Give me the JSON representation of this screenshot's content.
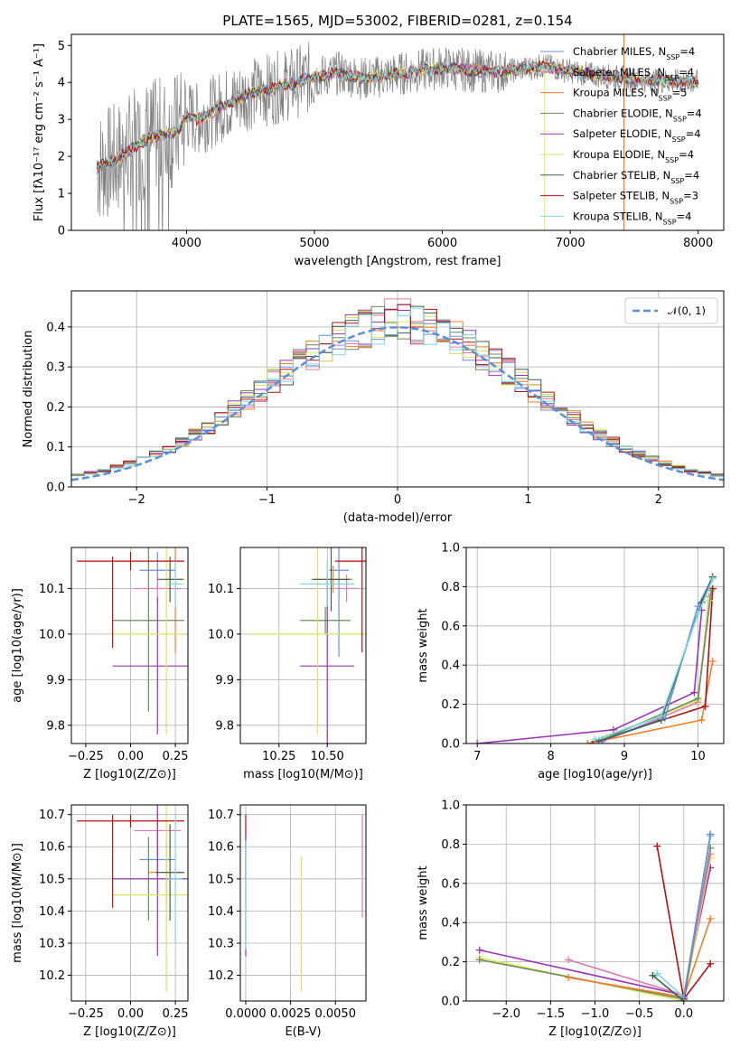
{
  "title": "PLATE=1565, MJD=53002, FIBERID=0281, z=0.154",
  "colors": {
    "miles_chabrier": "#6b8fd8",
    "miles_salpeter": "#e07ab0",
    "miles_kroupa": "#f07f2a",
    "elodie_chabrier": "#6b8c58",
    "elodie_salpeter": "#9a35b5",
    "elodie_kroupa": "#d9e65a",
    "stelib_chabrier": "#3e5f50",
    "stelib_salpeter": "#b21010",
    "stelib_kroupa": "#7ed8e0",
    "data": "#7f7f7f",
    "gauss": "#5b8fd8"
  },
  "legend_spectrum": [
    {
      "name": "Chabrier MILES, N",
      "sub": "SSP",
      "tail": "=4"
    },
    {
      "name": "Salpeter MILES, N",
      "sub": "SSP",
      "tail": "=4"
    },
    {
      "name": "Kroupa MILES, N",
      "sub": "SSP",
      "tail": "=5"
    },
    {
      "name": "Chabrier ELODIE, N",
      "sub": "SSP",
      "tail": "=4"
    },
    {
      "name": "Salpeter ELODIE, N",
      "sub": "SSP",
      "tail": "=4"
    },
    {
      "name": "Kroupa ELODIE, N",
      "sub": "SSP",
      "tail": "=4"
    },
    {
      "name": "Chabrier STELIB, N",
      "sub": "SSP",
      "tail": "=4"
    },
    {
      "name": "Salpeter STELIB, N",
      "sub": "SSP",
      "tail": "=3"
    },
    {
      "name": "Kroupa STELIB, N",
      "sub": "SSP",
      "tail": "=4"
    }
  ],
  "legend_hist": "𝒩(0, 1)",
  "chart_data": [
    {
      "id": "spectrum",
      "type": "line",
      "xlabel": "wavelength [Angstrom, rest frame]",
      "ylabel": "Flux [fλ10⁻¹⁷ erg cm⁻² s⁻¹ A⁻¹]",
      "xlim": [
        3100,
        8200
      ],
      "ylim": [
        0,
        5.3
      ],
      "xticks": [
        4000,
        5000,
        6000,
        7000,
        8000
      ],
      "yticks": [
        0,
        1,
        2,
        3,
        4,
        5
      ],
      "model_x": [
        3300,
        3450,
        3550,
        3700,
        3850,
        3950,
        4000,
        4100,
        4300,
        4500,
        4700,
        5000,
        5200,
        5400,
        5600,
        5800,
        6000,
        6300,
        6500,
        6800,
        7000,
        7300,
        7600,
        8000
      ],
      "model_y": [
        1.7,
        1.9,
        2.15,
        2.5,
        2.6,
        2.75,
        3.1,
        3.0,
        3.4,
        3.7,
        3.85,
        4.15,
        4.25,
        4.1,
        4.2,
        4.3,
        4.4,
        4.3,
        4.3,
        4.45,
        4.3,
        4.15,
        4.05,
        4.0
      ],
      "data_noise_amp": 1.0
    },
    {
      "id": "residuals",
      "type": "histogram",
      "xlabel": "(data-model)/error",
      "ylabel": "Normed distribution",
      "xlim": [
        -2.5,
        2.5
      ],
      "ylim": [
        0,
        0.49
      ],
      "xticks": [
        -2,
        -1,
        0,
        1,
        2
      ],
      "yticks": [
        0.0,
        0.1,
        0.2,
        0.3,
        0.4
      ],
      "bin_width": 0.1,
      "series_count": 9
    },
    {
      "id": "age_vs_Z",
      "type": "errorbar",
      "xlabel": "Z [log10(Z/Z⊙)]",
      "ylabel": "age  [log10(age/yr)]",
      "xlim": [
        -0.33,
        0.32
      ],
      "ylim": [
        9.76,
        10.19
      ],
      "xticks": [
        -0.25,
        0.0,
        0.25
      ],
      "yticks": [
        9.8,
        9.9,
        10.0,
        10.1
      ],
      "points": [
        {
          "c": "miles_chabrier",
          "x": 0.15,
          "xe": 0.1,
          "y": 10.14,
          "ye": 0.04
        },
        {
          "c": "miles_salpeter",
          "x": 0.15,
          "xe": 0.13,
          "y": 10.1,
          "ye": 0.03
        },
        {
          "c": "miles_kroupa",
          "x": 0.25,
          "xe": 0.05,
          "y": 10.12,
          "ye": 0.16
        },
        {
          "c": "elodie_chabrier",
          "x": 0.1,
          "xe": 0.2,
          "y": 10.03,
          "ye": 0.2
        },
        {
          "c": "elodie_salpeter",
          "x": 0.15,
          "xe": 0.25,
          "y": 9.93,
          "ye": 0.15
        },
        {
          "c": "elodie_kroupa",
          "x": 0.2,
          "xe": 0.3,
          "y": 10.0,
          "ye": 0.22
        },
        {
          "c": "stelib_chabrier",
          "x": 0.22,
          "xe": 0.07,
          "y": 10.12,
          "ye": 0.05
        },
        {
          "c": "stelib_salpeter",
          "x": 0.0,
          "xe": 0.3,
          "y": 10.16,
          "ye": 0.02
        },
        {
          "c": "stelib_kroupa",
          "x": 0.25,
          "xe": 0.04,
          "y": 10.11,
          "ye": 0.05
        }
      ],
      "extra_vlines": [
        {
          "c": "stelib_salpeter",
          "x": -0.1,
          "y0": 9.97,
          "y1": 10.17
        }
      ]
    },
    {
      "id": "age_vs_mass",
      "type": "errorbar",
      "xlabel": "mass [log10(M/M⊙)]",
      "ylabel": "",
      "xlim": [
        10.05,
        10.7
      ],
      "ylim": [
        9.76,
        10.19
      ],
      "xticks": [
        10.25,
        10.5
      ],
      "yticks": [
        9.8,
        9.9,
        10.0,
        10.1
      ],
      "points": [
        {
          "c": "miles_chabrier",
          "x": 10.56,
          "xe": 0.05,
          "y": 10.14,
          "ye": 0.19
        },
        {
          "c": "miles_salpeter",
          "x": 10.6,
          "xe": 0.06,
          "y": 10.1,
          "ye": 0.03
        },
        {
          "c": "miles_kroupa",
          "x": 10.53,
          "xe": 0.1,
          "y": 10.12,
          "ye": 0.03
        },
        {
          "c": "elodie_chabrier",
          "x": 10.49,
          "xe": 0.13,
          "y": 10.03,
          "ye": 0.03
        },
        {
          "c": "elodie_salpeter",
          "x": 10.5,
          "xe": 0.14,
          "y": 9.93,
          "ye": 0.2
        },
        {
          "c": "elodie_kroupa",
          "x": 10.45,
          "xe": 0.35,
          "y": 10.0,
          "ye": 0.22
        },
        {
          "c": "stelib_chabrier",
          "x": 10.52,
          "xe": 0.1,
          "y": 10.12,
          "ye": 0.07
        },
        {
          "c": "stelib_salpeter",
          "x": 10.68,
          "xe": 0.14,
          "y": 10.16,
          "ye": 0.2
        },
        {
          "c": "stelib_kroupa",
          "x": 10.5,
          "xe": 0.14,
          "y": 10.11,
          "ye": 0.05
        }
      ]
    },
    {
      "id": "weight_vs_age",
      "type": "line",
      "xlabel": "age  [log10(age/yr)]",
      "ylabel": "mass weight",
      "xlim": [
        6.85,
        10.35
      ],
      "ylim": [
        0,
        1.0
      ],
      "xticks": [
        7,
        8,
        9,
        10
      ],
      "yticks": [
        0.0,
        0.2,
        0.4,
        0.6,
        0.8,
        1.0
      ],
      "series": [
        {
          "c": "elodie_salpeter",
          "x": [
            7.0,
            8.85,
            9.95,
            10.05
          ],
          "y": [
            0.0,
            0.07,
            0.26,
            0.68
          ]
        },
        {
          "c": "miles_kroupa",
          "x": [
            8.5,
            10.05,
            10.2
          ],
          "y": [
            0.0,
            0.12,
            0.42
          ]
        },
        {
          "c": "stelib_salpeter",
          "x": [
            8.6,
            10.1,
            10.2
          ],
          "y": [
            0.01,
            0.19,
            0.79
          ]
        },
        {
          "c": "miles_salpeter",
          "x": [
            8.7,
            10.0,
            10.15
          ],
          "y": [
            0.01,
            0.21,
            0.75
          ]
        },
        {
          "c": "elodie_kroupa",
          "x": [
            8.65,
            10.0,
            10.15
          ],
          "y": [
            0.02,
            0.22,
            0.73
          ]
        },
        {
          "c": "elodie_chabrier",
          "x": [
            8.7,
            10.0,
            10.18
          ],
          "y": [
            0.02,
            0.23,
            0.78
          ]
        },
        {
          "c": "miles_chabrier",
          "x": [
            8.7,
            9.55,
            10.0,
            10.2
          ],
          "y": [
            0.02,
            0.13,
            0.7,
            0.85
          ]
        },
        {
          "c": "stelib_chabrier",
          "x": [
            8.65,
            9.5,
            10.05,
            10.2
          ],
          "y": [
            0.01,
            0.12,
            0.72,
            0.85
          ]
        },
        {
          "c": "stelib_kroupa",
          "x": [
            8.6,
            9.5,
            10.0,
            10.2
          ],
          "y": [
            0.02,
            0.14,
            0.66,
            0.84
          ]
        }
      ]
    },
    {
      "id": "mass_vs_Z",
      "type": "errorbar",
      "xlabel": "Z [log10(Z/Z⊙)]",
      "ylabel": "mass [log10(M/M⊙)]",
      "xlim": [
        -0.33,
        0.32
      ],
      "ylim": [
        10.12,
        10.73
      ],
      "xticks": [
        -0.25,
        0.0,
        0.25
      ],
      "yticks": [
        10.2,
        10.3,
        10.4,
        10.5,
        10.6,
        10.7
      ],
      "points": [
        {
          "c": "miles_chabrier",
          "x": 0.15,
          "xe": 0.1,
          "y": 10.56,
          "ye": 0.05
        },
        {
          "c": "miles_salpeter",
          "x": 0.15,
          "xe": 0.13,
          "y": 10.65,
          "ye": 0.06
        },
        {
          "c": "miles_kroupa",
          "x": 0.2,
          "xe": 0.1,
          "y": 10.52,
          "ye": 0.1
        },
        {
          "c": "elodie_chabrier",
          "x": 0.1,
          "xe": 0.2,
          "y": 10.5,
          "ye": 0.13
        },
        {
          "c": "elodie_salpeter",
          "x": 0.15,
          "xe": 0.25,
          "y": 10.5,
          "ye": 0.24
        },
        {
          "c": "elodie_kroupa",
          "x": 0.2,
          "xe": 0.3,
          "y": 10.45,
          "ye": 0.3
        },
        {
          "c": "stelib_chabrier",
          "x": 0.22,
          "xe": 0.08,
          "y": 10.52,
          "ye": 0.15
        },
        {
          "c": "stelib_salpeter",
          "x": 0.0,
          "xe": 0.3,
          "y": 10.68,
          "ye": 0.02
        },
        {
          "c": "stelib_kroupa",
          "x": 0.25,
          "xe": 0.04,
          "y": 10.5,
          "ye": 0.2
        }
      ],
      "extra_vlines": [
        {
          "c": "stelib_salpeter",
          "x": -0.1,
          "y0": 10.41,
          "y1": 10.7
        }
      ]
    },
    {
      "id": "mass_vs_ebv",
      "type": "errorbar",
      "xlabel": "E(B-V)",
      "ylabel": "",
      "xlim": [
        -0.0003,
        0.0067
      ],
      "ylim": [
        10.12,
        10.73
      ],
      "xticks": [
        0.0,
        0.0025,
        0.005
      ],
      "xtick_labels": [
        "0.0000",
        "0.0025",
        "0.0050"
      ],
      "yticks": [
        10.2,
        10.3,
        10.4,
        10.5,
        10.6,
        10.7
      ],
      "points": [
        {
          "c": "stelib_salpeter",
          "x": 0.0,
          "xe": 0.0,
          "y": 10.6,
          "ye": 0.1
        },
        {
          "c": "elodie_salpeter",
          "x": 0.0,
          "xe": 0.0,
          "y": 10.45,
          "ye": 0.19
        },
        {
          "c": "stelib_kroupa",
          "x": 0.0,
          "xe": 0.0,
          "y": 10.45,
          "ye": 0.17
        },
        {
          "c": "elodie_kroupa",
          "x": 0.0031,
          "xe": 0.0,
          "y": 10.36,
          "ye": 0.21
        },
        {
          "c": "miles_salpeter",
          "x": 0.0065,
          "xe": 0.0,
          "y": 10.54,
          "ye": 0.16
        }
      ]
    },
    {
      "id": "weight_vs_Z",
      "type": "line",
      "xlabel": "Z [log10(Z/Z⊙)]",
      "ylabel": "mass weight",
      "xlim": [
        -2.45,
        0.45
      ],
      "ylim": [
        0,
        1.0
      ],
      "xticks": [
        -2.0,
        -1.5,
        -1.0,
        -0.5,
        0.0
      ],
      "yticks": [
        0.0,
        0.2,
        0.4,
        0.6,
        0.8,
        1.0
      ],
      "series": [
        {
          "c": "elodie_salpeter",
          "x": [
            -2.3,
            0.0,
            0.3
          ],
          "y": [
            0.26,
            0.03,
            0.68
          ]
        },
        {
          "c": "elodie_kroupa",
          "x": [
            -2.3,
            0.0,
            0.3
          ],
          "y": [
            0.22,
            0.0,
            0.73
          ]
        },
        {
          "c": "elodie_chabrier",
          "x": [
            -2.3,
            0.0,
            0.3
          ],
          "y": [
            0.21,
            0.01,
            0.78
          ]
        },
        {
          "c": "miles_kroupa",
          "x": [
            -1.3,
            0.0,
            0.3
          ],
          "y": [
            0.12,
            0.02,
            0.42
          ]
        },
        {
          "c": "miles_salpeter",
          "x": [
            -1.3,
            0.0,
            0.3
          ],
          "y": [
            0.21,
            0.03,
            0.75
          ]
        },
        {
          "c": "stelib_salpeter",
          "x": [
            -0.3,
            0.0,
            0.3
          ],
          "y": [
            0.79,
            0.01,
            0.19
          ]
        },
        {
          "c": "stelib_chabrier",
          "x": [
            -0.35,
            0.0,
            0.3
          ],
          "y": [
            0.13,
            0.0,
            0.85
          ]
        },
        {
          "c": "stelib_kroupa",
          "x": [
            -0.3,
            0.0,
            0.3
          ],
          "y": [
            0.14,
            0.02,
            0.84
          ]
        },
        {
          "c": "miles_chabrier",
          "x": [
            0.0,
            0.3
          ],
          "y": [
            0.02,
            0.85
          ]
        }
      ]
    }
  ]
}
